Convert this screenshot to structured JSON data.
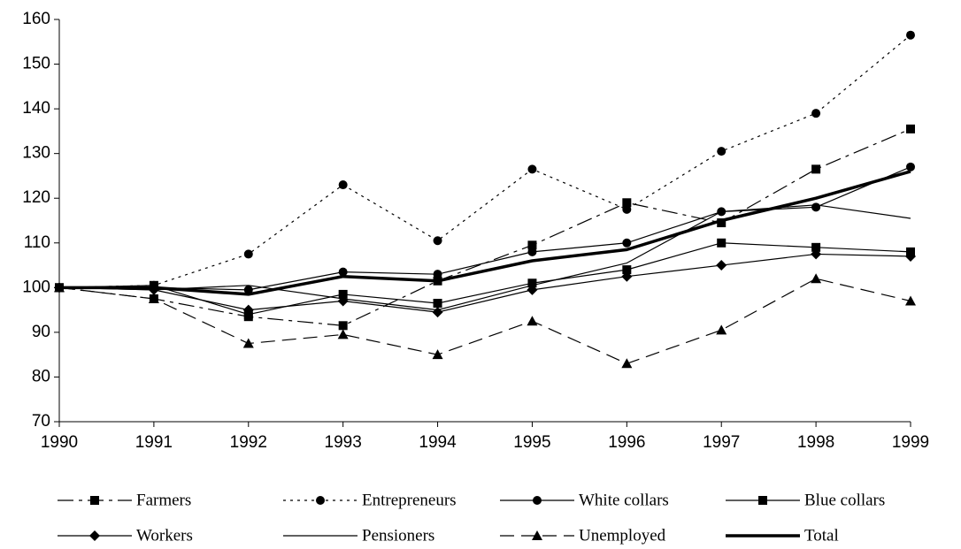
{
  "chart_data": {
    "type": "line",
    "x": [
      1990,
      1991,
      1992,
      1993,
      1994,
      1995,
      1996,
      1997,
      1998,
      1999
    ],
    "xlim": [
      1990,
      1999
    ],
    "xticks": [
      1990,
      1991,
      1992,
      1993,
      1994,
      1995,
      1996,
      1997,
      1998,
      1999
    ],
    "ylim": [
      70,
      160
    ],
    "yticks": [
      70,
      80,
      90,
      100,
      110,
      120,
      130,
      140,
      150,
      160
    ],
    "grid": false,
    "legend": "bottom",
    "series": [
      {
        "name": "Farmers",
        "color": "#000000",
        "dash": "dashdot",
        "marker": "square",
        "width": 1.2,
        "values": [
          100,
          97.5,
          93.5,
          91.5,
          101.5,
          109.5,
          119,
          114.5,
          126.5,
          135.5
        ]
      },
      {
        "name": "Entrepreneurs",
        "color": "#000000",
        "dash": "dotted",
        "marker": "circle",
        "width": 1.2,
        "values": [
          100,
          100.5,
          107.5,
          123,
          110.5,
          126.5,
          117.5,
          130.5,
          139,
          156.5
        ]
      },
      {
        "name": "White collars",
        "color": "#000000",
        "dash": "solid",
        "marker": "circle",
        "width": 1.2,
        "values": [
          100,
          100,
          99.5,
          103.5,
          103,
          108,
          110,
          117,
          118,
          127
        ]
      },
      {
        "name": "Blue collars",
        "color": "#000000",
        "dash": "solid",
        "marker": "square",
        "width": 1.2,
        "values": [
          100,
          100.5,
          94,
          98.5,
          96.5,
          101,
          104,
          110,
          109,
          108
        ]
      },
      {
        "name": "Workers",
        "color": "#000000",
        "dash": "solid",
        "marker": "diamond",
        "width": 1.2,
        "values": [
          100,
          99.5,
          95,
          97,
          94.5,
          99.5,
          102.5,
          105,
          107.5,
          107
        ]
      },
      {
        "name": "Pensioners",
        "color": "#000000",
        "dash": "solid",
        "marker": "none",
        "width": 1.2,
        "values": [
          100,
          99.5,
          100.5,
          97.5,
          95,
          100.5,
          105.5,
          117,
          118.5,
          115.5
        ]
      },
      {
        "name": "Unemployed",
        "color": "#000000",
        "dash": "dashed",
        "marker": "triangle",
        "width": 1.2,
        "values": [
          100,
          97.5,
          87.5,
          89.5,
          85,
          92.5,
          83,
          90.5,
          102,
          97
        ]
      },
      {
        "name": "Total",
        "color": "#000000",
        "dash": "solid",
        "marker": "none",
        "width": 3.5,
        "values": [
          100,
          100,
          98.5,
          102.5,
          101.5,
          106,
          108.5,
          115,
          120,
          126
        ]
      }
    ]
  }
}
